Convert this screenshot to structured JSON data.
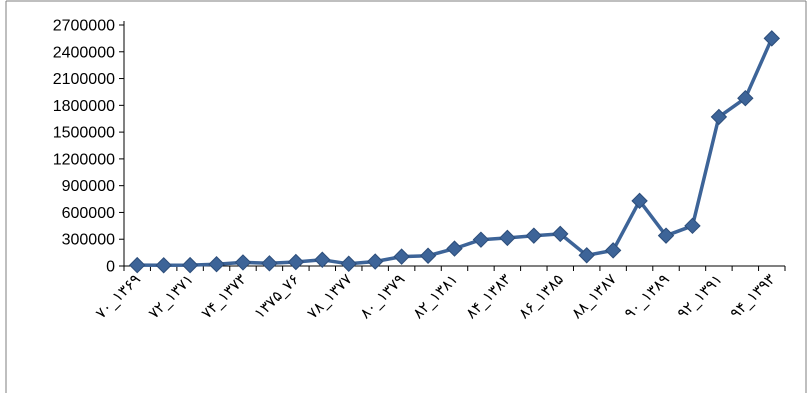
{
  "chart_data": {
    "type": "line",
    "title": "",
    "xlabel": "",
    "ylabel": "",
    "ylim": [
      0,
      2700000
    ],
    "yticks": [
      "0",
      "300000",
      "600000",
      "900000",
      "1200000",
      "1500000",
      "1800000",
      "2100000",
      "2400000",
      "2700000"
    ],
    "grid": false,
    "legend": "none",
    "x_tick_labels": [
      "۷۰_۱۳۶۹",
      "۷۲_۱۳۷۱",
      "۷۴_۱۳۷۳",
      "۱۳۷۵_۷۶",
      "۷۸_۱۳۷۷",
      "۸۰_۱۳۷۹",
      "۸۲_۱۳۸۱",
      "۸۴_۱۳۸۳",
      "۸۶_۱۳۸۵",
      "۸۸_۱۳۸۷",
      "۹۰_۱۳۸۹",
      "۹۲_۱۳۹۱",
      "۹۴_۱۳۹۳"
    ],
    "series": [
      {
        "color": "#3D6498",
        "marker": "diamond",
        "values": [
          10000,
          8000,
          10000,
          20000,
          40000,
          30000,
          45000,
          70000,
          25000,
          50000,
          105000,
          115000,
          195000,
          295000,
          315000,
          340000,
          360000,
          120000,
          175000,
          730000,
          340000,
          450000,
          1670000,
          1880000,
          2550000
        ]
      }
    ]
  }
}
